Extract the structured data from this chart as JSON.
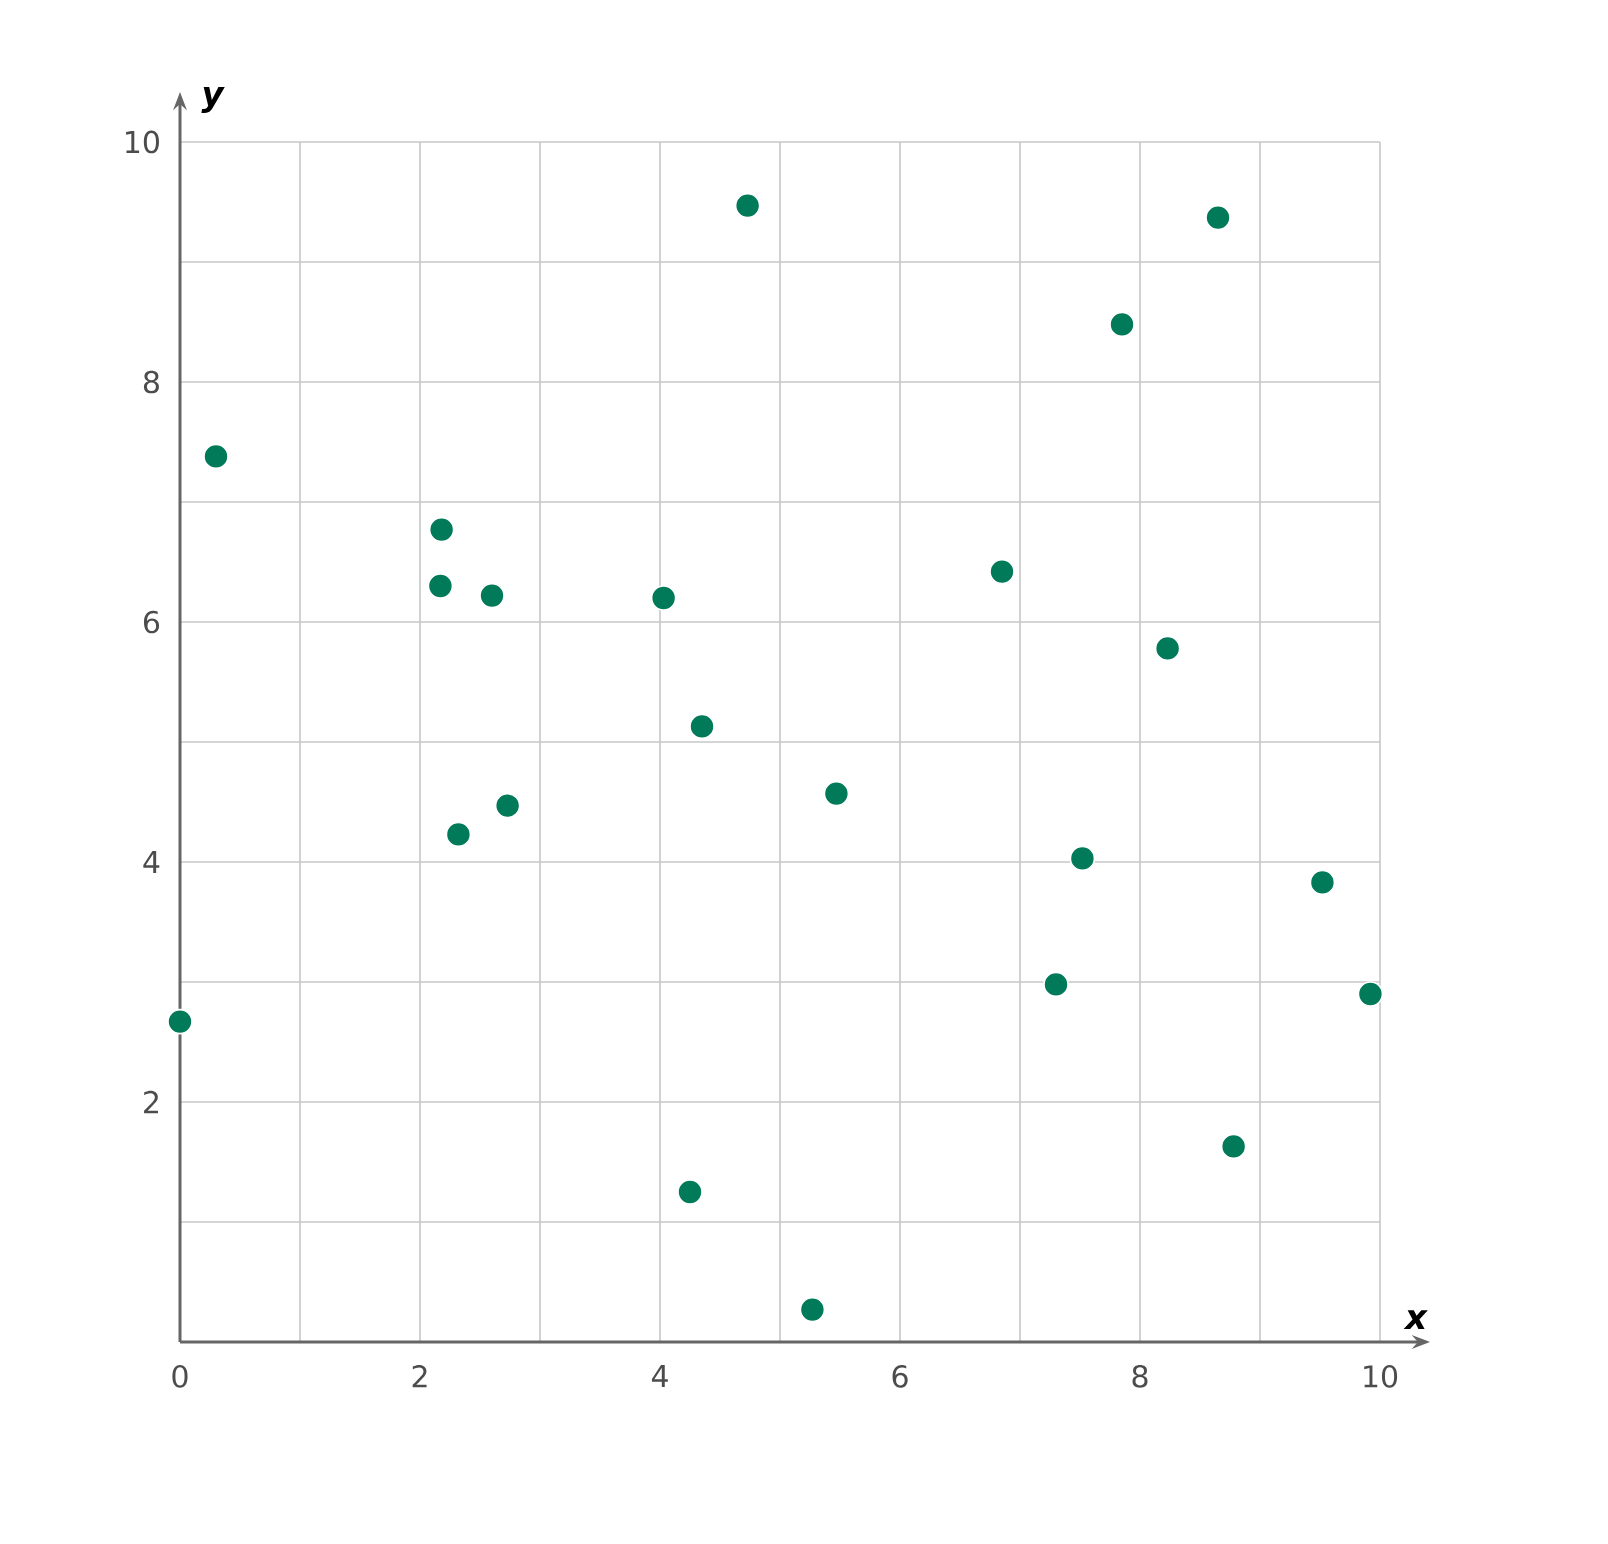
{
  "chart_data": {
    "type": "scatter",
    "xlabel": "x",
    "ylabel": "y",
    "x": [
      0,
      0.3,
      2.18,
      2.17,
      2.6,
      2.32,
      2.73,
      4.03,
      4.35,
      4.73,
      4.25,
      5.27,
      5.47,
      6.85,
      7.3,
      7.52,
      7.85,
      8.23,
      8.65,
      8.78,
      9.52,
      9.92
    ],
    "values": [
      2.67,
      7.38,
      6.77,
      6.3,
      6.22,
      4.23,
      4.47,
      6.2,
      5.13,
      9.47,
      1.25,
      0.27,
      4.57,
      6.42,
      2.98,
      4.03,
      8.48,
      5.78,
      9.37,
      1.63,
      3.83,
      2.9
    ],
    "color": "#007a58",
    "marker": "circle",
    "grid": true,
    "xlim": [
      0,
      10
    ],
    "ylim": [
      0,
      10
    ],
    "xticks": [
      0,
      {
        "value": 1,
        "label": null
      },
      2,
      {
        "value": 3,
        "label": null
      },
      4,
      {
        "value": 5,
        "label": null
      },
      6,
      {
        "value": 7,
        "label": null
      },
      8,
      {
        "value": 9,
        "label": null
      },
      10
    ],
    "yticks": [
      {
        "value": 1,
        "label": null
      },
      2,
      {
        "value": 3,
        "label": null
      },
      4,
      {
        "value": 5,
        "label": null
      },
      6,
      {
        "value": 7,
        "label": null
      },
      8,
      {
        "value": 9,
        "label": null
      },
      10
    ]
  }
}
